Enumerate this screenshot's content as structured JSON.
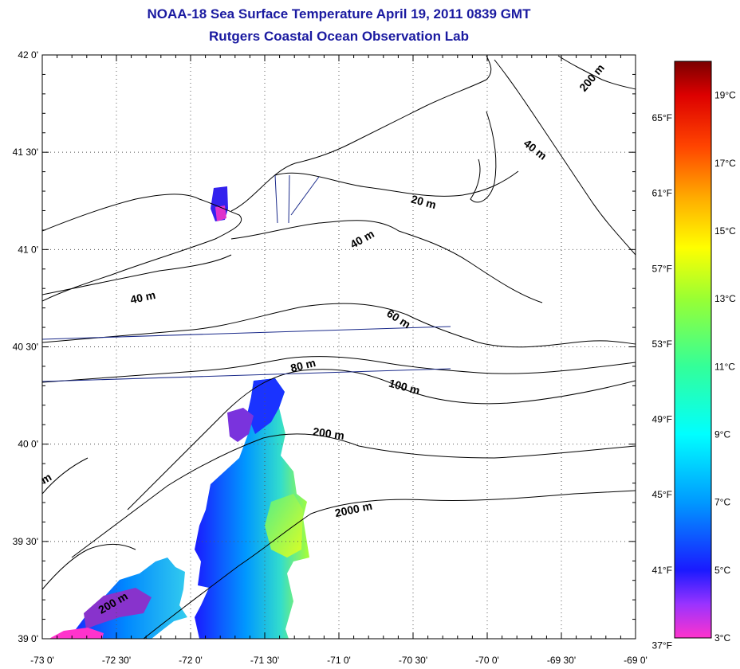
{
  "title": {
    "line1": "NOAA-18 Sea Surface Temperature April 19, 2011 0839 GMT",
    "line2": "Rutgers Coastal Ocean Observation Lab"
  },
  "map": {
    "lon_range": [
      -73.0,
      -69.0
    ],
    "lat_range": [
      39.0,
      42.0
    ],
    "grid": true,
    "x_ticks": [
      {
        "value": -73.0,
        "label": "-73 0'"
      },
      {
        "value": -72.5,
        "label": "-72 30'"
      },
      {
        "value": -72.0,
        "label": "-72 0'"
      },
      {
        "value": -71.5,
        "label": "-71 30'"
      },
      {
        "value": -71.0,
        "label": "-71 0'"
      },
      {
        "value": -70.5,
        "label": "-70 30'"
      },
      {
        "value": -70.0,
        "label": "-70 0'"
      },
      {
        "value": -69.5,
        "label": "-69 30'"
      },
      {
        "value": -69.0,
        "label": "-69 0'"
      }
    ],
    "y_ticks": [
      {
        "value": 42.0,
        "label": "42 0'"
      },
      {
        "value": 41.5,
        "label": "41 30'"
      },
      {
        "value": 41.0,
        "label": "41 0'"
      },
      {
        "value": 40.5,
        "label": "40 30'"
      },
      {
        "value": 40.0,
        "label": "40 0'"
      },
      {
        "value": 39.5,
        "label": "39 30'"
      },
      {
        "value": 39.0,
        "label": "39 0'"
      }
    ],
    "contour_labels": [
      {
        "text": "200 m",
        "lon": -69.29,
        "lat": 41.88,
        "angle": -50
      },
      {
        "text": "40 m",
        "lon": -69.68,
        "lat": 41.51,
        "angle": 38
      },
      {
        "text": "20 m",
        "lon": -70.43,
        "lat": 41.24,
        "angle": 15
      },
      {
        "text": "40 m",
        "lon": -70.84,
        "lat": 41.05,
        "angle": -30
      },
      {
        "text": "40 m",
        "lon": -72.32,
        "lat": 40.75,
        "angle": -12
      },
      {
        "text": "60 m",
        "lon": -70.6,
        "lat": 40.64,
        "angle": 32
      },
      {
        "text": "80 m",
        "lon": -71.24,
        "lat": 40.4,
        "angle": -14
      },
      {
        "text": "100 m",
        "lon": -70.56,
        "lat": 40.29,
        "angle": 15
      },
      {
        "text": "200 m",
        "lon": -71.07,
        "lat": 40.05,
        "angle": 8
      },
      {
        "text": "2000 m",
        "lon": -70.9,
        "lat": 39.66,
        "angle": -12
      },
      {
        "text": "200 m",
        "lon": -72.52,
        "lat": 39.18,
        "angle": -30
      },
      {
        "text": "m",
        "lon": -72.97,
        "lat": 39.82,
        "angle": -30
      }
    ]
  },
  "colorbar": {
    "celsius_range": [
      3,
      20
    ],
    "fahrenheit_labels": [
      "65°F",
      "61°F",
      "57°F",
      "53°F",
      "49°F",
      "45°F",
      "41°F",
      "37°F"
    ],
    "fahrenheit_values": [
      65,
      61,
      57,
      53,
      49,
      45,
      41,
      37
    ],
    "celsius_labels": [
      "19°C",
      "17°C",
      "15°C",
      "13°C",
      "11°C",
      "9°C",
      "7°C",
      "5°C",
      "3°C"
    ],
    "celsius_values": [
      19,
      17,
      15,
      13,
      11,
      9,
      7,
      5,
      3
    ],
    "stops": [
      {
        "c": 3,
        "color": "#ff33cc"
      },
      {
        "c": 4,
        "color": "#9933ff"
      },
      {
        "c": 5,
        "color": "#1a1aff"
      },
      {
        "c": 7,
        "color": "#0099ff"
      },
      {
        "c": 9,
        "color": "#00ffff"
      },
      {
        "c": 11,
        "color": "#33ff99"
      },
      {
        "c": 13,
        "color": "#99ff33"
      },
      {
        "c": 14.5,
        "color": "#ffff00"
      },
      {
        "c": 16,
        "color": "#ffaa00"
      },
      {
        "c": 17.5,
        "color": "#ff4400"
      },
      {
        "c": 19,
        "color": "#dd0000"
      },
      {
        "c": 20,
        "color": "#7a0000"
      }
    ]
  },
  "colors": {
    "frame": "#000000",
    "grid": "#555555",
    "title": "#1a1aa0",
    "track_line": "#1a2a8a"
  }
}
